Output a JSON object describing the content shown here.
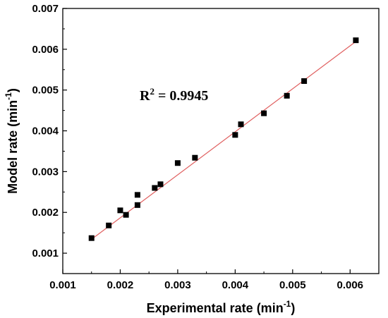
{
  "chart_data": {
    "type": "scatter",
    "xlabel": {
      "main": "Experimental rate (min",
      "sup": "-1",
      "close": ")"
    },
    "ylabel": {
      "main": "Model rate (min",
      "sup": "-1",
      "close": ")"
    },
    "xlim": [
      0.001,
      0.0065
    ],
    "ylim": [
      0.0005,
      0.007
    ],
    "xticks": [
      "0.001",
      "0.002",
      "0.003",
      "0.004",
      "0.005",
      "0.006"
    ],
    "yticks": [
      "0.001",
      "0.002",
      "0.003",
      "0.004",
      "0.005",
      "0.006",
      "0.007"
    ],
    "grid": false,
    "points": [
      {
        "x": 0.0015,
        "y": 0.00137
      },
      {
        "x": 0.0018,
        "y": 0.00168
      },
      {
        "x": 0.002,
        "y": 0.00205
      },
      {
        "x": 0.0021,
        "y": 0.00194
      },
      {
        "x": 0.0023,
        "y": 0.00243
      },
      {
        "x": 0.0023,
        "y": 0.00218
      },
      {
        "x": 0.0026,
        "y": 0.0026
      },
      {
        "x": 0.0027,
        "y": 0.00269
      },
      {
        "x": 0.003,
        "y": 0.00321
      },
      {
        "x": 0.0033,
        "y": 0.00334
      },
      {
        "x": 0.004,
        "y": 0.0039
      },
      {
        "x": 0.0041,
        "y": 0.00416
      },
      {
        "x": 0.0045,
        "y": 0.00443
      },
      {
        "x": 0.0049,
        "y": 0.00486
      },
      {
        "x": 0.0052,
        "y": 0.00522
      },
      {
        "x": 0.0061,
        "y": 0.00622
      }
    ],
    "fit_line": {
      "x": [
        0.0015,
        0.0061
      ],
      "y": [
        0.00134,
        0.00619
      ],
      "color": "#e06060"
    },
    "marker_color": "#000000",
    "annotation": {
      "base": "R",
      "sup": "2",
      "rest": " = 0.9945"
    }
  }
}
